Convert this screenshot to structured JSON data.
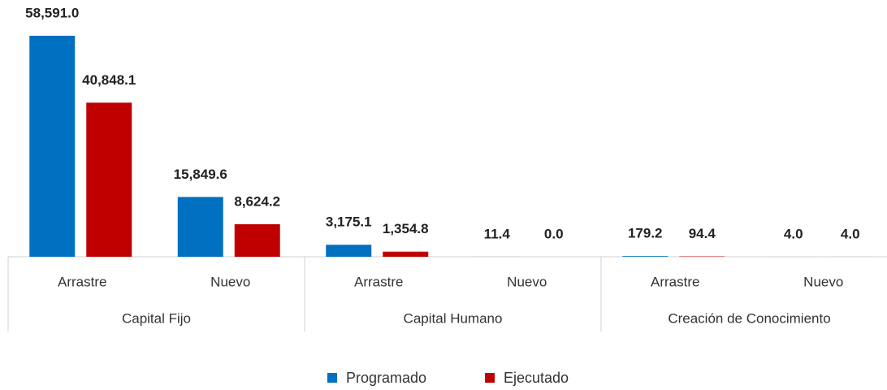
{
  "chart_data": {
    "type": "bar",
    "groups": [
      {
        "label": "Capital Fijo",
        "categories": [
          "Arrastre",
          "Nuevo"
        ]
      },
      {
        "label": "Capital Humano",
        "categories": [
          "Arrastre",
          "Nuevo"
        ]
      },
      {
        "label": "Creación de Conocimiento",
        "categories": [
          "Arrastre",
          "Nuevo"
        ]
      }
    ],
    "series": [
      {
        "name": "Programado",
        "color": "#0070c0",
        "values": [
          58591.0,
          15849.6,
          3175.1,
          11.4,
          179.2,
          4.0
        ],
        "value_labels": [
          "58,591.0",
          "15,849.6",
          "3,175.1",
          "11.4",
          "179.2",
          "4.0"
        ]
      },
      {
        "name": "Ejecutado",
        "color": "#c00000",
        "values": [
          40848.1,
          8624.2,
          1354.8,
          0.0,
          94.4,
          4.0
        ],
        "value_labels": [
          "40,848.1",
          "8,624.2",
          "1,354.8",
          "0.0",
          "94.4",
          "4.0"
        ]
      }
    ]
  }
}
